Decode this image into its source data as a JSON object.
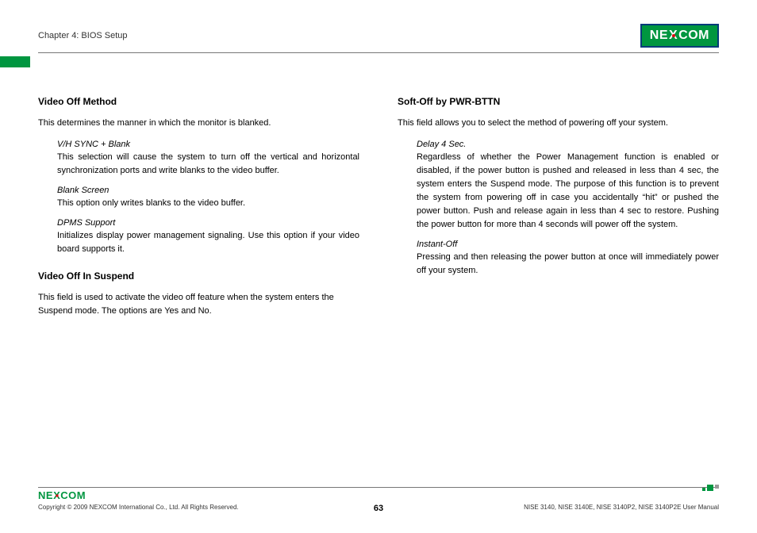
{
  "header": {
    "chapter": "Chapter 4: BIOS Setup",
    "logo_parts": {
      "pre": "NE",
      "x": "X",
      "post": "COM"
    }
  },
  "left_column": {
    "s1": {
      "heading": "Video Off Method",
      "intro": "This determines the manner in which the monitor is blanked.",
      "opts": [
        {
          "title": "V/H SYNC + Blank",
          "desc": "This selection will cause the system to turn off the vertical and horizontal synchronization ports and write blanks to the video buffer."
        },
        {
          "title": "Blank Screen",
          "desc": "This option only writes blanks to the video buffer."
        },
        {
          "title": "DPMS Support",
          "desc": "Initializes display power management signaling. Use this option if your video board supports it."
        }
      ]
    },
    "s2": {
      "heading": "Video Off In Suspend",
      "intro": "This field is used to activate the video off feature when the system enters the Suspend mode. The options are Yes and No."
    }
  },
  "right_column": {
    "s1": {
      "heading": "Soft-Off by PWR-BTTN",
      "intro": "This field allows you to select the method of powering off your system.",
      "opts": [
        {
          "title": "Delay 4 Sec.",
          "desc": "Regardless of whether the Power Management function is enabled or disabled, if the power button is pushed and released in less than 4 sec, the system enters the Suspend mode. The purpose of this function is to prevent the system from powering off in case you accidentally “hit” or pushed the power button. Push and release again in less than 4 sec to restore. Pushing the power button for more than 4 seconds will power off the system."
        },
        {
          "title": "Instant-Off",
          "desc": "Pressing and then releasing the power button at once will immediately power off your system."
        }
      ]
    }
  },
  "footer": {
    "logo_parts": {
      "pre": "NE",
      "x": "X",
      "post": "COM"
    },
    "copyright": "Copyright © 2009 NEXCOM International Co., Ltd. All Rights Reserved.",
    "page": "63",
    "manual": "NISE 3140, NISE 3140E, NISE 3140P2, NISE 3140P2E User Manual"
  },
  "colors": {
    "brand_green": "#009640",
    "brand_blue": "#003b7a",
    "brand_red": "#e30613",
    "rule_gray": "#777777",
    "text": "#000000"
  }
}
